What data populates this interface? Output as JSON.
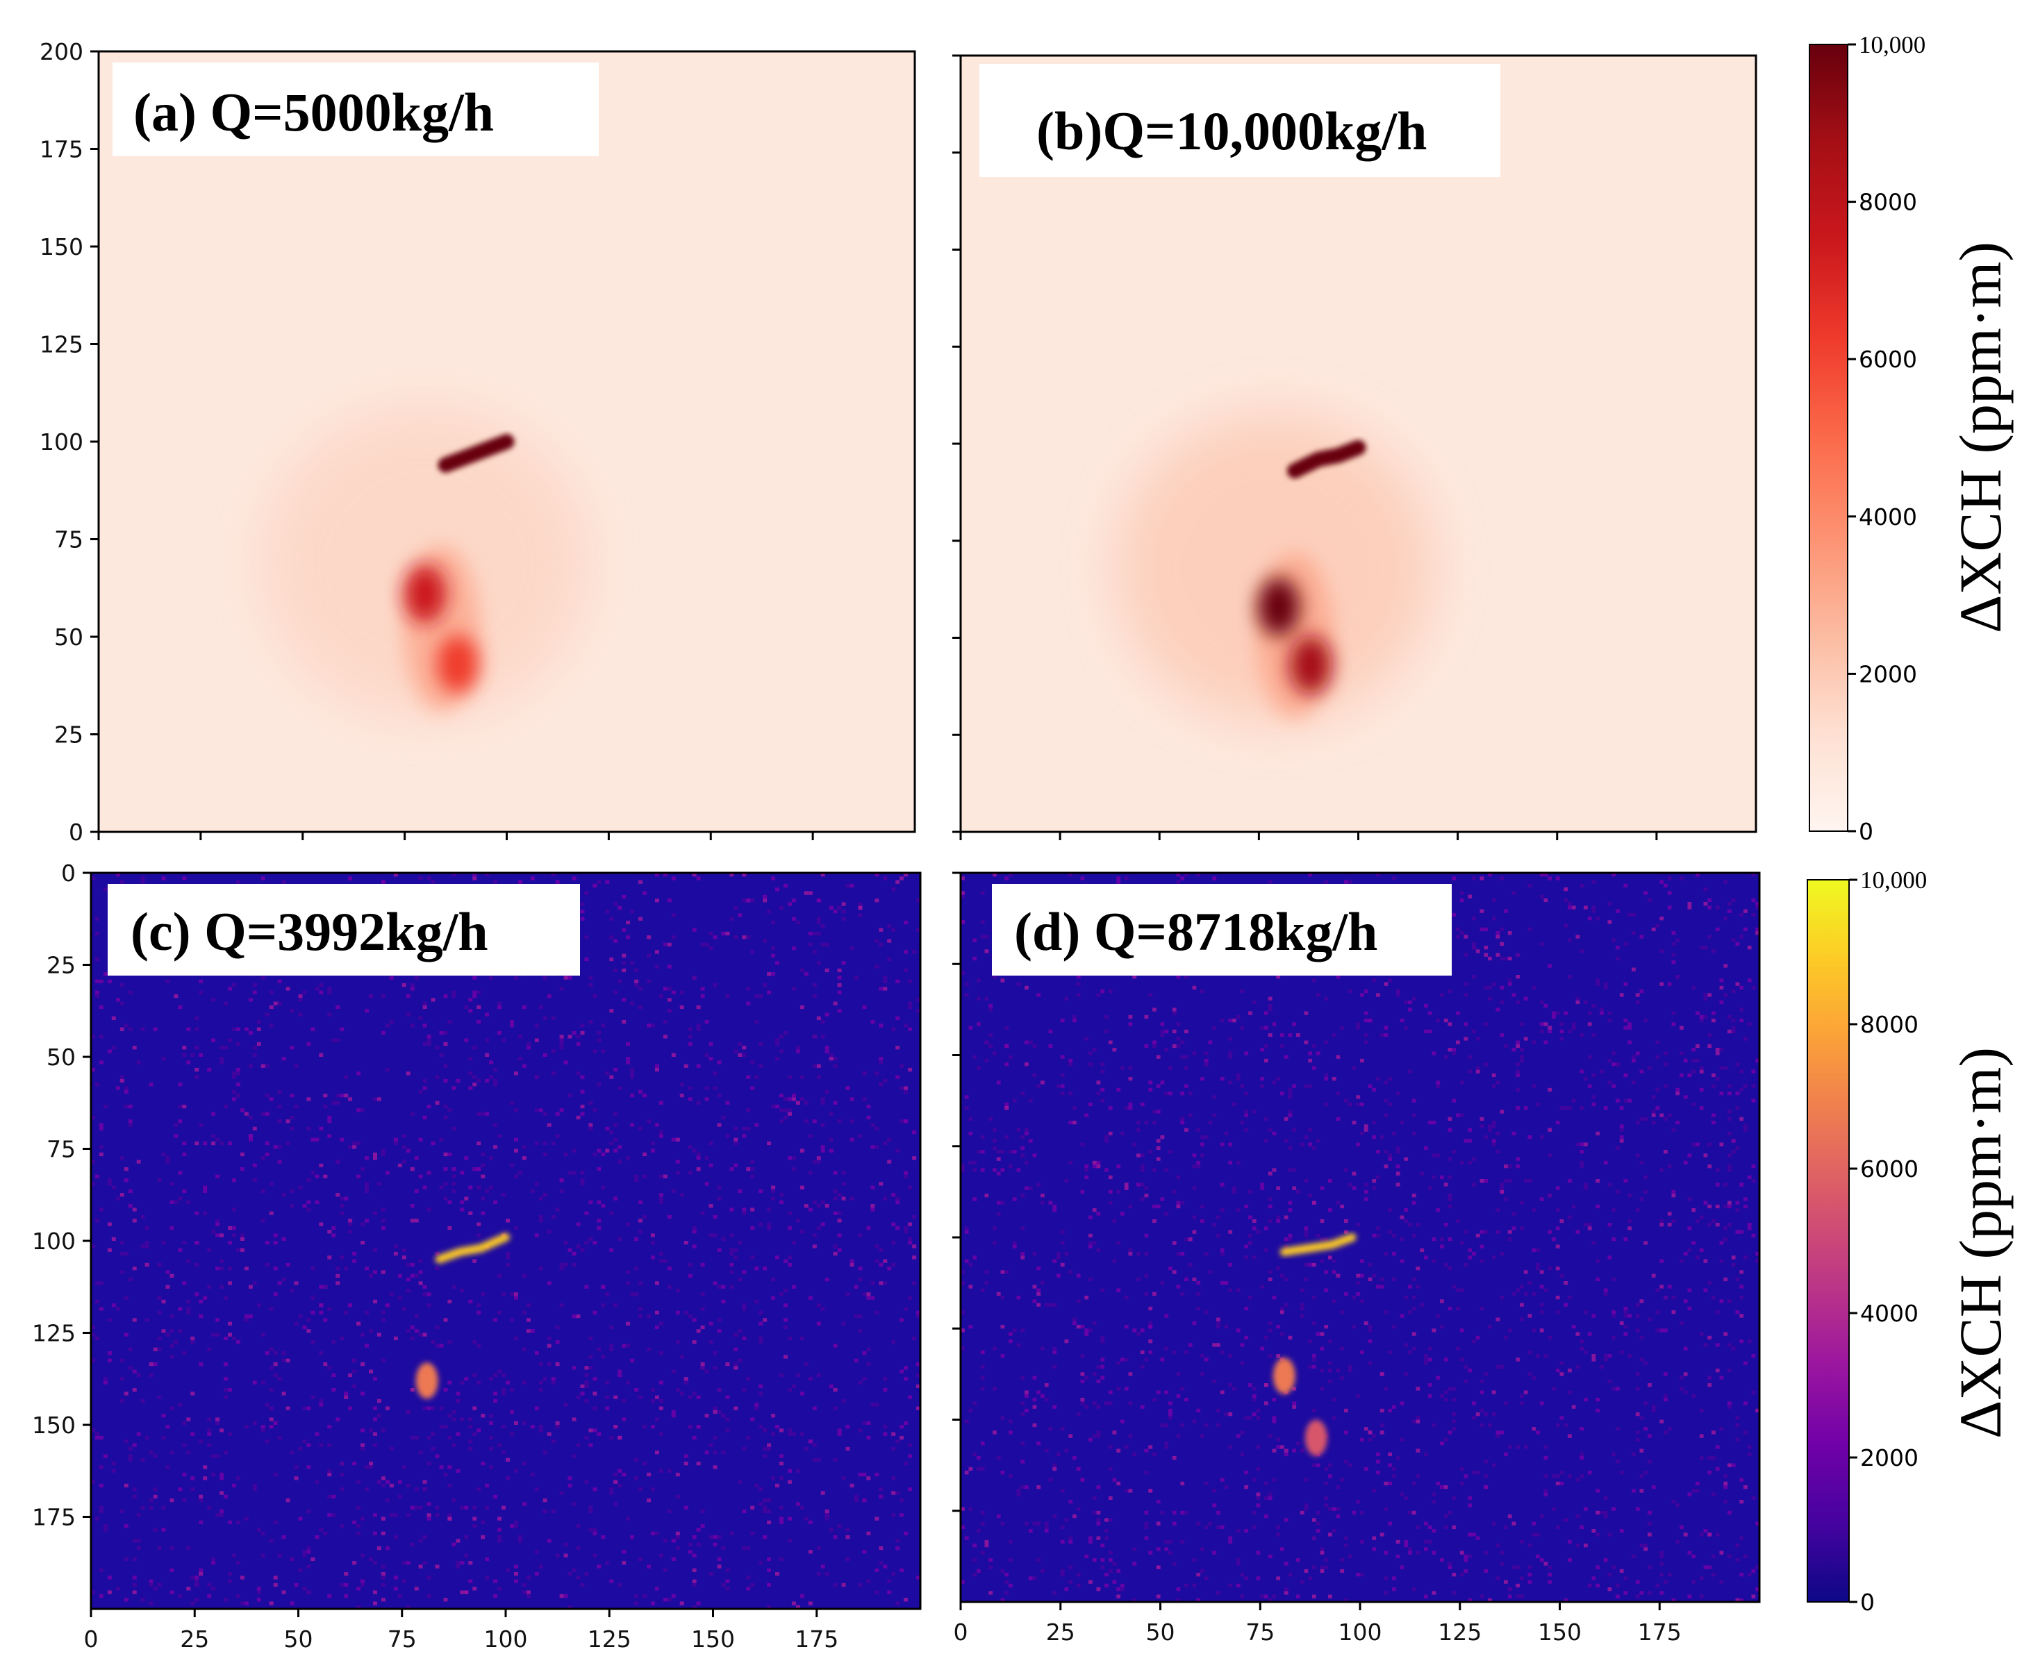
{
  "chart_data": [
    {
      "id": "a",
      "type": "heatmap",
      "title": "(a) Q=5000kg/h",
      "emission_rate_kg_per_h": 5000,
      "colormap": "Reds",
      "grid_size": [
        200,
        200
      ],
      "xlim": [
        0,
        200
      ],
      "ylim": [
        0,
        200
      ],
      "y_direction": "up",
      "xticks": [
        0,
        25,
        50,
        75,
        100,
        125,
        150,
        175
      ],
      "yticks": [
        0,
        25,
        50,
        75,
        100,
        125,
        150,
        175,
        200
      ],
      "show_x_tick_labels": false,
      "show_y_tick_labels": true,
      "plume_features": [
        {
          "name": "source-streak",
          "points": [
            [
              85,
              94
            ],
            [
              90,
              96
            ],
            [
              95,
              98
            ],
            [
              100,
              100
            ]
          ],
          "value": 10000
        },
        {
          "name": "core-upper",
          "x": 80,
          "y": 61,
          "value": 8000
        },
        {
          "name": "core-lower",
          "x": 88,
          "y": 43,
          "value": 6500
        }
      ]
    },
    {
      "id": "b",
      "type": "heatmap",
      "title": "(b)Q=10,000kg/h",
      "emission_rate_kg_per_h": 10000,
      "colormap": "Reds",
      "grid_size": [
        200,
        200
      ],
      "xlim": [
        0,
        200
      ],
      "ylim": [
        0,
        200
      ],
      "y_direction": "up",
      "xticks": [
        0,
        25,
        50,
        75,
        100,
        125,
        150,
        175
      ],
      "yticks": [
        0,
        25,
        50,
        75,
        100,
        125,
        150,
        175,
        200
      ],
      "show_x_tick_labels": false,
      "show_y_tick_labels": false,
      "plume_features": [
        {
          "name": "source-streak",
          "points": [
            [
              84,
              93
            ],
            [
              90,
              96
            ],
            [
              95,
              97
            ],
            [
              100,
              99
            ]
          ],
          "value": 10000
        },
        {
          "name": "core-upper",
          "x": 80,
          "y": 58,
          "value": 10000
        },
        {
          "name": "core-lower",
          "x": 88,
          "y": 43,
          "value": 8500
        }
      ]
    },
    {
      "id": "c",
      "type": "heatmap",
      "title": "(c) Q=3992kg/h",
      "emission_rate_kg_per_h": 3992,
      "colormap": "plasma",
      "grid_size": [
        200,
        200
      ],
      "xlim": [
        0,
        200
      ],
      "ylim": [
        0,
        200
      ],
      "y_direction": "down",
      "xticks": [
        0,
        25,
        50,
        75,
        100,
        125,
        150,
        175
      ],
      "yticks": [
        0,
        25,
        50,
        75,
        100,
        125,
        150,
        175
      ],
      "show_x_tick_labels": true,
      "show_y_tick_labels": true,
      "plume_features": [
        {
          "name": "source-streak",
          "points": [
            [
              84,
              105
            ],
            [
              89,
              103
            ],
            [
              94,
              102
            ],
            [
              100,
              99
            ]
          ],
          "value": 9000
        },
        {
          "name": "blob",
          "x": 81,
          "y": 138,
          "value": 6500
        }
      ]
    },
    {
      "id": "d",
      "type": "heatmap",
      "title": "(d) Q=8718kg/h",
      "emission_rate_kg_per_h": 8718,
      "colormap": "plasma",
      "grid_size": [
        200,
        200
      ],
      "xlim": [
        0,
        200
      ],
      "ylim": [
        0,
        200
      ],
      "y_direction": "down",
      "xticks": [
        0,
        25,
        50,
        75,
        100,
        125,
        150,
        175
      ],
      "yticks": [
        0,
        25,
        50,
        75,
        100,
        125,
        150,
        175
      ],
      "show_x_tick_labels": true,
      "show_y_tick_labels": false,
      "plume_features": [
        {
          "name": "source-streak",
          "points": [
            [
              81,
              104
            ],
            [
              87,
              103
            ],
            [
              93,
              102
            ],
            [
              98,
              100
            ]
          ],
          "value": 8800
        },
        {
          "name": "blob-upper",
          "x": 81,
          "y": 138,
          "value": 6500
        },
        {
          "name": "blob-lower",
          "x": 89,
          "y": 155,
          "value": 6000
        }
      ]
    }
  ],
  "colorbars": [
    {
      "id": "top",
      "colormap": "Reds",
      "range": [
        0,
        10000
      ],
      "ticks": [
        0,
        2000,
        4000,
        6000,
        8000,
        10000
      ],
      "tick_labels": [
        "0",
        "2000",
        "4000",
        "6000",
        "8000",
        "10,000"
      ],
      "label": "ΔXCH (ppm·m)"
    },
    {
      "id": "bottom",
      "colormap": "plasma",
      "range": [
        0,
        10000
      ],
      "ticks": [
        0,
        2000,
        4000,
        6000,
        8000,
        10000
      ],
      "tick_labels": [
        "0",
        "2000",
        "4000",
        "6000",
        "8000",
        "10,000"
      ],
      "label": "ΔXCH (ppm·m)"
    }
  ],
  "colors": {
    "reds_stops": [
      "#fff5f0",
      "#fee0d2",
      "#fcbba1",
      "#fc9272",
      "#fb6a4a",
      "#ef3b2c",
      "#cb181d",
      "#a50f15",
      "#67000d"
    ],
    "plasma_stops": [
      "#0d0887",
      "#46039f",
      "#7201a8",
      "#9c179e",
      "#bd3786",
      "#d8576b",
      "#ed7953",
      "#fb9f3a",
      "#fdca26",
      "#f0f921"
    ],
    "reds_background": "#fde8de",
    "plasma_background": "#1d0aa0"
  }
}
